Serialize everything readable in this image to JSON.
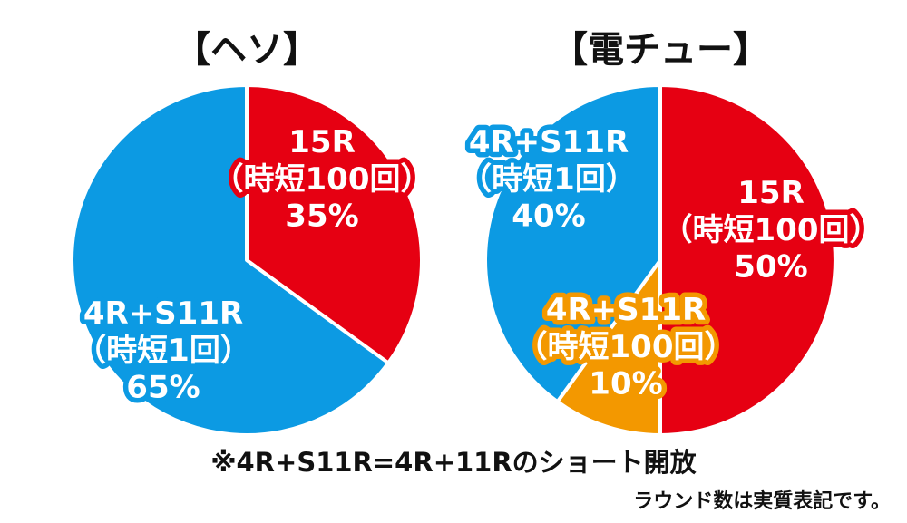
{
  "chart_data": [
    {
      "type": "pie",
      "title": "【ヘソ】",
      "slices": [
        {
          "label_lines": [
            "15R",
            "（時短100回）",
            "35%"
          ],
          "value": 35,
          "color": "#e60012"
        },
        {
          "label_lines": [
            "4R+S11R",
            "（時短1回）",
            "65%"
          ],
          "value": 65,
          "color": "#0c9ae3"
        }
      ]
    },
    {
      "type": "pie",
      "title": "【電チュー】",
      "slices": [
        {
          "label_lines": [
            "15R",
            "（時短100回）",
            "50%"
          ],
          "value": 50,
          "color": "#e60012"
        },
        {
          "label_lines": [
            "4R+S11R",
            "（時短100回）",
            "10%"
          ],
          "value": 10,
          "color": "#f39800"
        },
        {
          "label_lines": [
            "4R+S11R",
            "（時短1回）",
            "40%"
          ],
          "value": 40,
          "color": "#0c9ae3"
        }
      ]
    }
  ],
  "notes": {
    "line1": "※4R+S11R=4R+11Rのショート開放",
    "line2": "ラウンド数は実質表記です。"
  }
}
